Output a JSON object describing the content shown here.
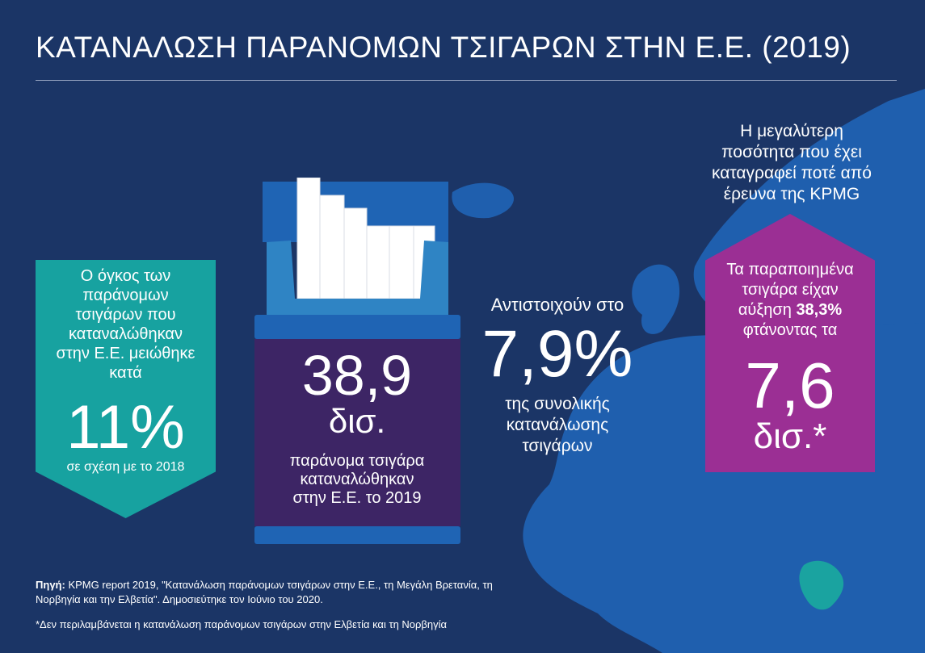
{
  "title": "ΚΑΤΑΝΑΛΩΣΗ ΠΑΡΑΝΟΜΩΝ ΤΣΙΓΑΡΩΝ ΣΤΗΝ Ε.Ε. (2019)",
  "colors": {
    "background": "#1b3566",
    "map": "#1f5fae",
    "teal": "#17a2a0",
    "purple": "#9b2f94",
    "pack_body": "#3d2565",
    "pack_blue": "#1f64b4",
    "greece": "#1aa3a0"
  },
  "teal_box": {
    "text": "Ο όγκος των\nπαράνομων\nτσιγάρων που\nκαταναλώθηκαν\nστην Ε.Ε. μειώθηκε\nκατά",
    "value": "11%",
    "sub": "σε σχέση με το 2018"
  },
  "pack": {
    "value": "38,9",
    "unit": "δισ.",
    "text": "παράνομα τσιγάρα\nκαταναλώθηκαν\nστην Ε.Ε. το 2019"
  },
  "middle": {
    "top": "Αντιστοιχούν στο",
    "value": "7,9%",
    "bottom": "της συνολικής\nκατανάλωσης\nτσιγάρων"
  },
  "right": {
    "top": "Η μεγαλύτερη\nποσότητα που έχει\nκαταγραφεί ποτέ από\nέρευνα της KPMG",
    "line1": "Τα παραποιημένα",
    "line2": "τσιγάρα είχαν",
    "line3_pre": "αύξηση ",
    "line3_bold": "38,3%",
    "line4": "φτάνοντας τα",
    "value": "7,6",
    "unit": "δισ.*"
  },
  "footer": {
    "source_label": "Πηγή:",
    "source_text": " KPMG report 2019, \"Κατανάλωση παράνομων τσιγάρων στην Ε.Ε., τη Μεγάλη Βρετανία, τη Νορβηγία και την Ελβετία\". Δημοσιεύτηκε τον Ιούνιο του 2020.",
    "note": "*Δεν περιλαμβάνεται η κατανάλωση παράνομων τσιγάρων στην Ελβετία και τη Νορβηγία"
  }
}
